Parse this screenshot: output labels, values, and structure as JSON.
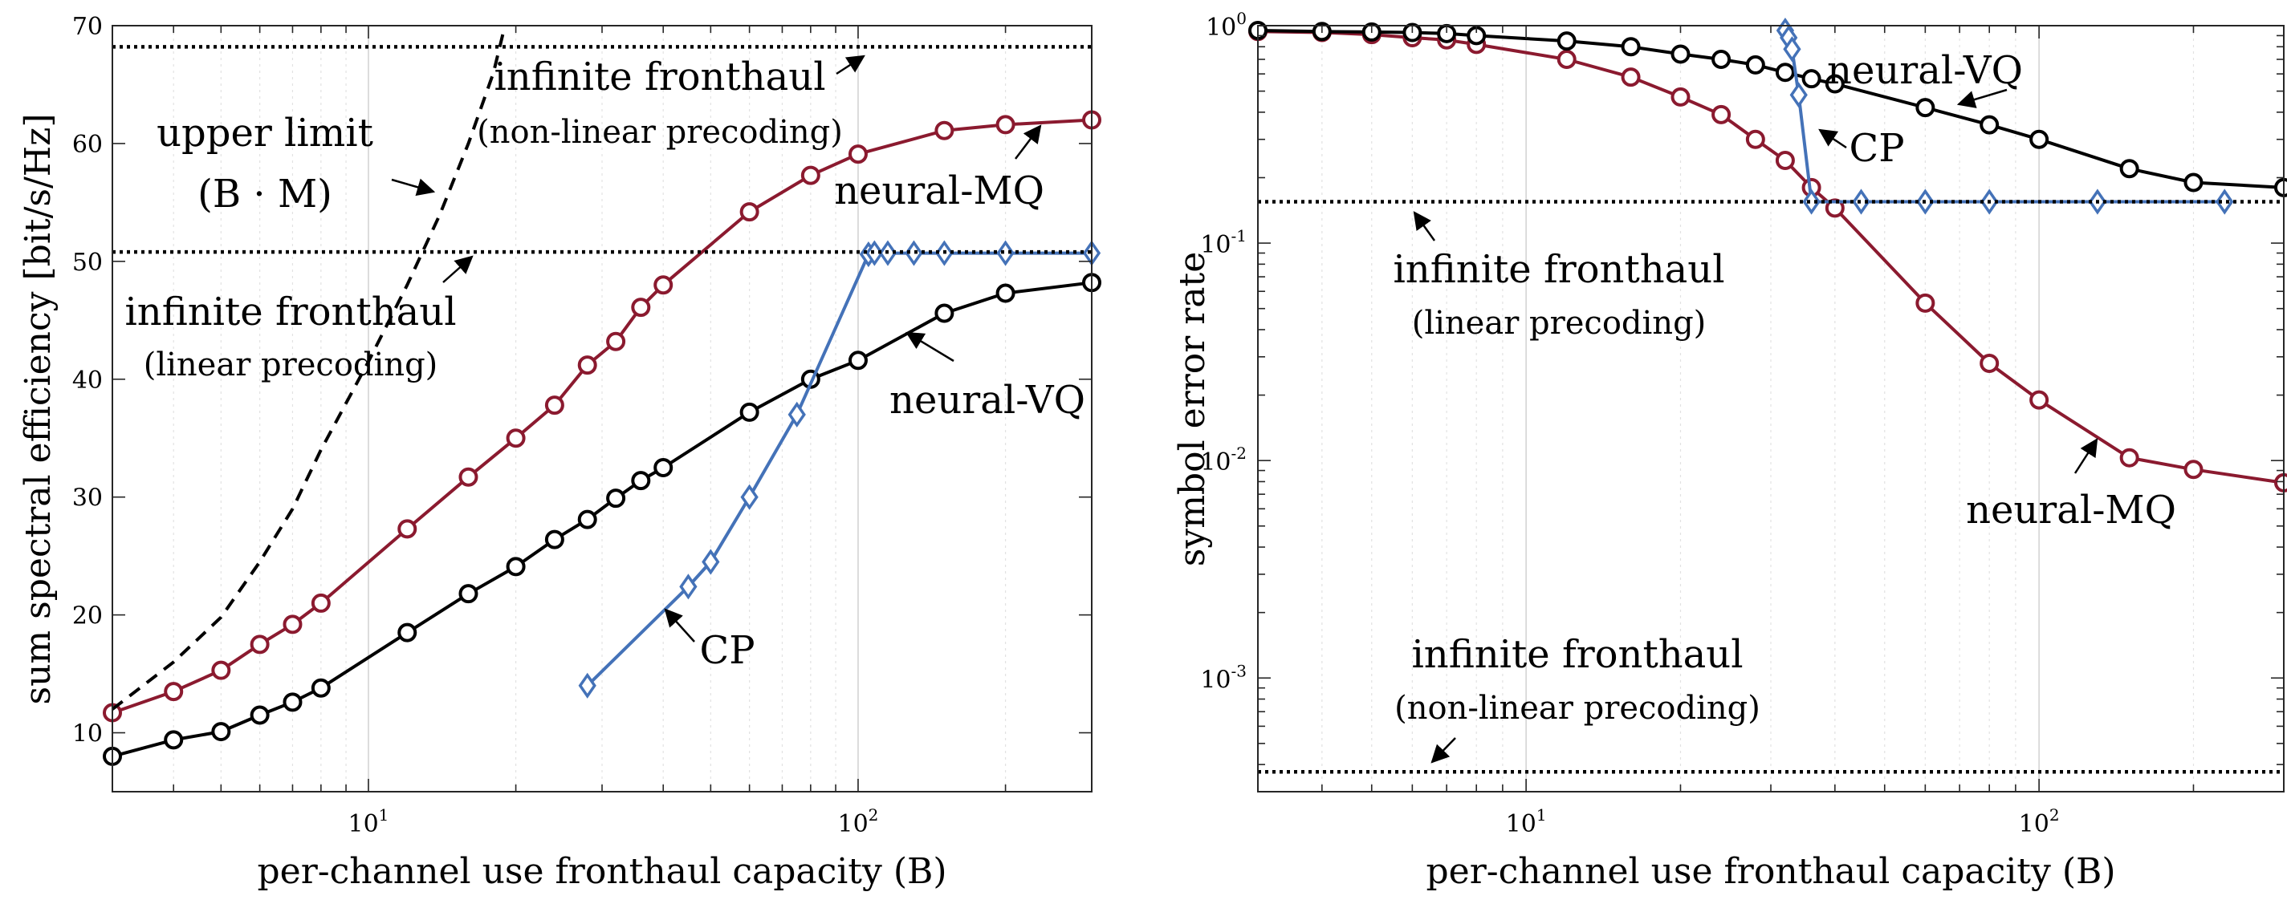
{
  "chart_data": [
    {
      "type": "line",
      "xscale": "log",
      "xlim": [
        3,
        300
      ],
      "ylim": [
        5,
        70
      ],
      "xlabel": "per-channel use fronthaul capacity (B)",
      "ylabel": "sum spectral efficiency [bit/s/Hz]",
      "x_ticks": [
        {
          "base": "10",
          "exp": "1",
          "value": 10
        },
        {
          "base": "10",
          "exp": "2",
          "value": 100
        }
      ],
      "y_ticks": [
        "10",
        "20",
        "30",
        "40",
        "50",
        "60",
        "70"
      ],
      "series": [
        {
          "name": "neural-MQ",
          "color": "#8b1a2f",
          "marker": "circle",
          "x": [
            3,
            4,
            5,
            6,
            7,
            8,
            12,
            16,
            20,
            24,
            28,
            32,
            36,
            40,
            60,
            80,
            100,
            150,
            200,
            300
          ],
          "y": [
            11.7,
            13.5,
            15.3,
            17.5,
            19.2,
            21.0,
            27.3,
            31.7,
            35.0,
            37.8,
            41.2,
            43.2,
            46.1,
            48.0,
            54.2,
            57.3,
            59.1,
            61.1,
            61.6,
            62.0
          ]
        },
        {
          "name": "neural-VQ",
          "color": "#000000",
          "marker": "circle",
          "x": [
            3,
            4,
            5,
            6,
            7,
            8,
            12,
            16,
            20,
            24,
            28,
            32,
            36,
            40,
            60,
            80,
            100,
            150,
            200,
            300
          ],
          "y": [
            8.0,
            9.4,
            10.1,
            11.5,
            12.6,
            13.8,
            18.5,
            21.8,
            24.1,
            26.4,
            28.1,
            29.9,
            31.4,
            32.5,
            37.2,
            40.0,
            41.6,
            45.6,
            47.3,
            48.2
          ]
        },
        {
          "name": "CP",
          "color": "#4472b8",
          "marker": "diamond",
          "x": [
            28,
            45,
            50,
            60,
            75,
            105,
            108,
            115,
            130,
            150,
            200,
            300
          ],
          "y": [
            14.0,
            22.4,
            24.5,
            30.0,
            37.0,
            50.6,
            50.7,
            50.7,
            50.7,
            50.7,
            50.7,
            50.7
          ]
        },
        {
          "name": "upper limit (B · M)",
          "color": "#000000",
          "style": "dashed",
          "marker": "none",
          "x": [
            3,
            4,
            5,
            6,
            7,
            8,
            10,
            12,
            14,
            16,
            18,
            19
          ],
          "y": [
            12,
            16,
            19.8,
            24.5,
            29,
            34,
            41.5,
            48,
            54,
            60,
            66,
            70
          ]
        },
        {
          "name": "infinite fronthaul (non-linear precoding)",
          "color": "#000000",
          "style": "dotted",
          "marker": "none",
          "x": [
            3,
            300
          ],
          "y": [
            68.2,
            68.2
          ]
        },
        {
          "name": "infinite fronthaul (linear precoding)",
          "color": "#000000",
          "style": "dotted",
          "marker": "none",
          "x": [
            3,
            300
          ],
          "y": [
            50.8,
            50.8
          ]
        }
      ],
      "annotations": {
        "upper_limit_line1": "upper limit",
        "upper_limit_line2": "(B · M)",
        "inf_nonlin_line1": "infinite fronthaul",
        "inf_nonlin_line2": "(non-linear precoding)",
        "inf_lin_line1": "infinite fronthaul",
        "inf_lin_line2": "(linear precoding)",
        "neural_mq": "neural-MQ",
        "neural_vq": "neural-VQ",
        "cp": "CP"
      }
    },
    {
      "type": "line",
      "xscale": "log",
      "yscale": "log",
      "xlim": [
        3,
        300
      ],
      "ylim": [
        0.0003,
        1
      ],
      "xlabel": "per-channel use fronthaul capacity (B)",
      "ylabel": "symbol error rate",
      "x_ticks": [
        {
          "base": "10",
          "exp": "1",
          "value": 10
        },
        {
          "base": "10",
          "exp": "2",
          "value": 100
        }
      ],
      "y_ticks": [
        {
          "base": "10",
          "exp": "0",
          "value": 1
        },
        {
          "base": "10",
          "exp": "-1",
          "value": 0.1
        },
        {
          "base": "10",
          "exp": "-2",
          "value": 0.01
        },
        {
          "base": "10",
          "exp": "-3",
          "value": 0.001
        }
      ],
      "series": [
        {
          "name": "neural-MQ",
          "color": "#8b1a2f",
          "marker": "circle",
          "x": [
            3,
            4,
            5,
            6,
            7,
            8,
            12,
            16,
            20,
            24,
            28,
            32,
            36,
            40,
            60,
            80,
            100,
            150,
            200,
            300
          ],
          "y": [
            0.94,
            0.93,
            0.91,
            0.88,
            0.86,
            0.82,
            0.7,
            0.58,
            0.47,
            0.39,
            0.3,
            0.24,
            0.18,
            0.145,
            0.053,
            0.028,
            0.019,
            0.0103,
            0.0091,
            0.0079
          ]
        },
        {
          "name": "neural-VQ",
          "color": "#000000",
          "marker": "circle",
          "x": [
            3,
            4,
            5,
            6,
            7,
            8,
            12,
            16,
            20,
            24,
            28,
            32,
            36,
            40,
            60,
            80,
            100,
            150,
            200,
            300
          ],
          "y": [
            0.95,
            0.94,
            0.935,
            0.93,
            0.92,
            0.9,
            0.85,
            0.8,
            0.74,
            0.7,
            0.66,
            0.61,
            0.57,
            0.54,
            0.42,
            0.35,
            0.3,
            0.22,
            0.19,
            0.18
          ]
        },
        {
          "name": "CP",
          "color": "#4472b8",
          "marker": "diamond",
          "x": [
            32,
            32.5,
            33,
            34,
            36,
            45,
            60,
            80,
            130,
            230
          ],
          "y": [
            0.95,
            0.88,
            0.78,
            0.48,
            0.155,
            0.155,
            0.155,
            0.155,
            0.155,
            0.155
          ]
        },
        {
          "name": "infinite fronthaul (linear precoding)",
          "color": "#000000",
          "style": "dotted",
          "marker": "none",
          "x": [
            3,
            300
          ],
          "y": [
            0.155,
            0.155
          ]
        },
        {
          "name": "infinite fronthaul (non-linear precoding)",
          "color": "#000000",
          "style": "dotted",
          "marker": "none",
          "x": [
            3,
            300
          ],
          "y": [
            0.00037,
            0.00037
          ]
        }
      ],
      "annotations": {
        "inf_lin_line1": "infinite fronthaul",
        "inf_lin_line2": "(linear precoding)",
        "inf_nonlin_line1": "infinite fronthaul",
        "inf_nonlin_line2": "(non-linear precoding)",
        "neural_mq": "neural-MQ",
        "neural_vq": "neural-VQ",
        "cp": "CP"
      }
    }
  ]
}
